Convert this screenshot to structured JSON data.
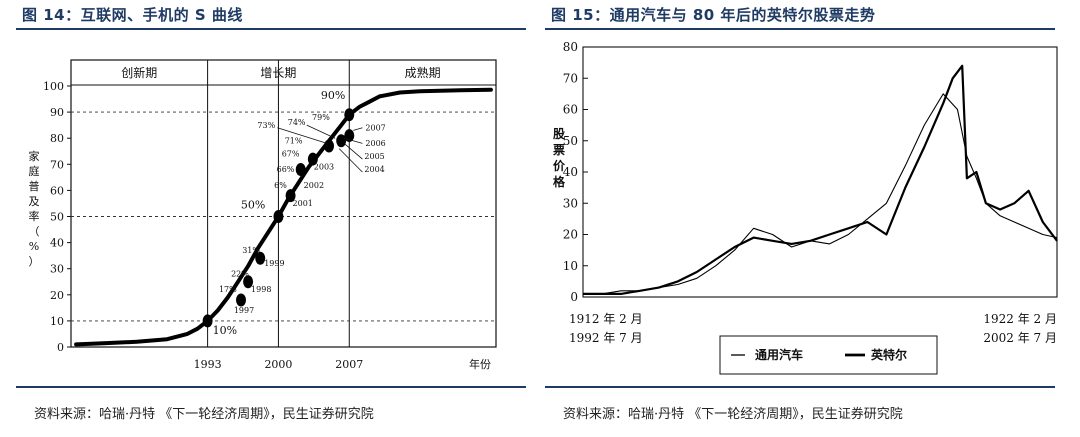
{
  "figures": [
    {
      "title": "图 14：互联网、手机的 S 曲线",
      "source": "资料来源：哈瑞·丹特 《下一轮经济周期》，民生证券研究院"
    },
    {
      "title": "图 15：通用汽车与 80 年后的英特尔股票走势",
      "source": "资料来源：哈瑞·丹特 《下一轮经济周期》，民生证券研究院"
    }
  ],
  "chart_data": [
    {
      "type": "line",
      "title": "",
      "xlabel": "年份",
      "ylabel": "家庭普及率（%）",
      "ylim": [
        0,
        100
      ],
      "yticks": [
        0,
        10,
        20,
        30,
        40,
        50,
        60,
        70,
        80,
        90,
        100
      ],
      "xticks": [
        "1993",
        "2000",
        "2007"
      ],
      "phases": [
        "创新期",
        "增长期",
        "成熟期"
      ],
      "grid": "dashed horizontal at 10, 50, 90; vertical dividers at 1993, 2000, 2007",
      "curve_x": [
        1980,
        1983,
        1986,
        1989,
        1991,
        1992,
        1993,
        1994,
        1995,
        1996,
        1997,
        1998,
        1999,
        2000,
        2001,
        2002,
        2003,
        2004,
        2005,
        2006,
        2007,
        2008,
        2009,
        2010,
        2012,
        2014,
        2016,
        2018,
        2021
      ],
      "curve_y": [
        1,
        1.5,
        2,
        3,
        5,
        7,
        10,
        14,
        19,
        25,
        31,
        38,
        44,
        50,
        57,
        63,
        69,
        74,
        79,
        84,
        89,
        92,
        94,
        96,
        97.5,
        98,
        98.2,
        98.4,
        98.6
      ],
      "points": [
        {
          "label": "10%",
          "x": 1993,
          "y": 10
        },
        {
          "label": "1997",
          "x": 1996.3,
          "y": 18
        },
        {
          "label": "1998",
          "x": 1997,
          "y": 25
        },
        {
          "label": "1999",
          "x": 1998.2,
          "y": 34
        },
        {
          "label": "50%",
          "x": 2000,
          "y": 50
        },
        {
          "label": "2001",
          "x": 2001.2,
          "y": 58
        },
        {
          "label": "2002",
          "x": 2002.2,
          "y": 68
        },
        {
          "label": "2003",
          "x": 2003.4,
          "y": 72
        },
        {
          "label": "2004",
          "x": 2005,
          "y": 77
        },
        {
          "label": "2005",
          "x": 2006.2,
          "y": 79
        },
        {
          "label": "2006",
          "x": 2007,
          "y": 81
        },
        {
          "label": "2007",
          "x": 2007,
          "y": 89
        }
      ],
      "annotations": [
        "17%",
        "22%",
        "31%",
        "6%",
        "66%",
        "67%",
        "71%",
        "73%",
        "74%",
        "79%",
        "90%",
        "50%",
        "10%"
      ]
    },
    {
      "type": "line",
      "title": "",
      "ylabel": "股票价格",
      "ylim": [
        0,
        80
      ],
      "yticks": [
        0,
        10,
        20,
        30,
        40,
        50,
        60,
        70,
        80
      ],
      "xlim": [
        0,
        10
      ],
      "x_start_label": [
        "1912 年 2 月",
        "1992 年 7 月"
      ],
      "x_end_label": [
        "1922 年 2 月",
        "2002 年 7 月"
      ],
      "legend": "bottom",
      "series": [
        {
          "name": "通用汽车",
          "style": "thin",
          "x": [
            0,
            0.4,
            0.8,
            1.2,
            1.6,
            2.0,
            2.4,
            2.8,
            3.2,
            3.6,
            4.0,
            4.4,
            4.8,
            5.2,
            5.6,
            6.0,
            6.4,
            6.8,
            7.2,
            7.6,
            7.9,
            8.1,
            8.3,
            8.5,
            8.8,
            9.1,
            9.4,
            9.7,
            10.0
          ],
          "values": [
            1,
            1,
            2,
            2,
            3,
            4,
            6,
            10,
            15,
            22,
            20,
            16,
            18,
            17,
            20,
            25,
            30,
            42,
            55,
            65,
            60,
            45,
            38,
            30,
            26,
            24,
            22,
            20,
            19
          ]
        },
        {
          "name": "英特尔",
          "style": "thick",
          "x": [
            0,
            0.4,
            0.8,
            1.2,
            1.6,
            2.0,
            2.4,
            2.8,
            3.2,
            3.6,
            4.0,
            4.4,
            4.8,
            5.2,
            5.6,
            6.0,
            6.4,
            6.8,
            7.2,
            7.6,
            7.8,
            8.0,
            8.1,
            8.3,
            8.5,
            8.8,
            9.1,
            9.4,
            9.7,
            10.0
          ],
          "values": [
            1,
            1,
            1,
            2,
            3,
            5,
            8,
            12,
            16,
            19,
            18,
            17,
            18,
            20,
            22,
            24,
            20,
            35,
            48,
            62,
            70,
            74,
            38,
            40,
            30,
            28,
            30,
            34,
            24,
            18
          ]
        }
      ]
    }
  ]
}
